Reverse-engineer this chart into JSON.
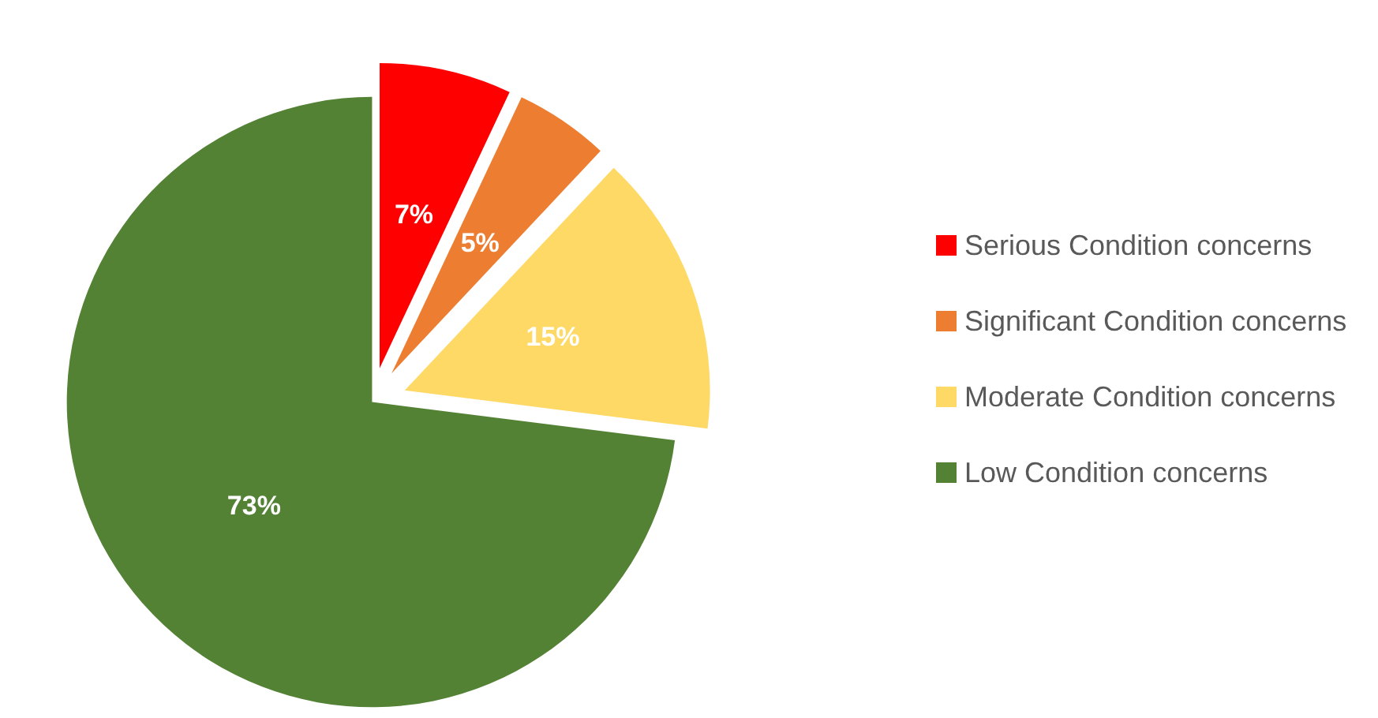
{
  "chart_data": {
    "type": "pie",
    "categories": [
      "Serious Condition concerns",
      "Significant Condition concerns",
      "Moderate Condition concerns",
      "Low Condition concerns"
    ],
    "values": [
      7,
      5,
      15,
      73
    ],
    "colors": [
      "#ff0000",
      "#ed7d31",
      "#ffd966",
      "#548235"
    ],
    "value_labels": [
      "7%",
      "5%",
      "15%",
      "73%"
    ],
    "legend": "right"
  }
}
